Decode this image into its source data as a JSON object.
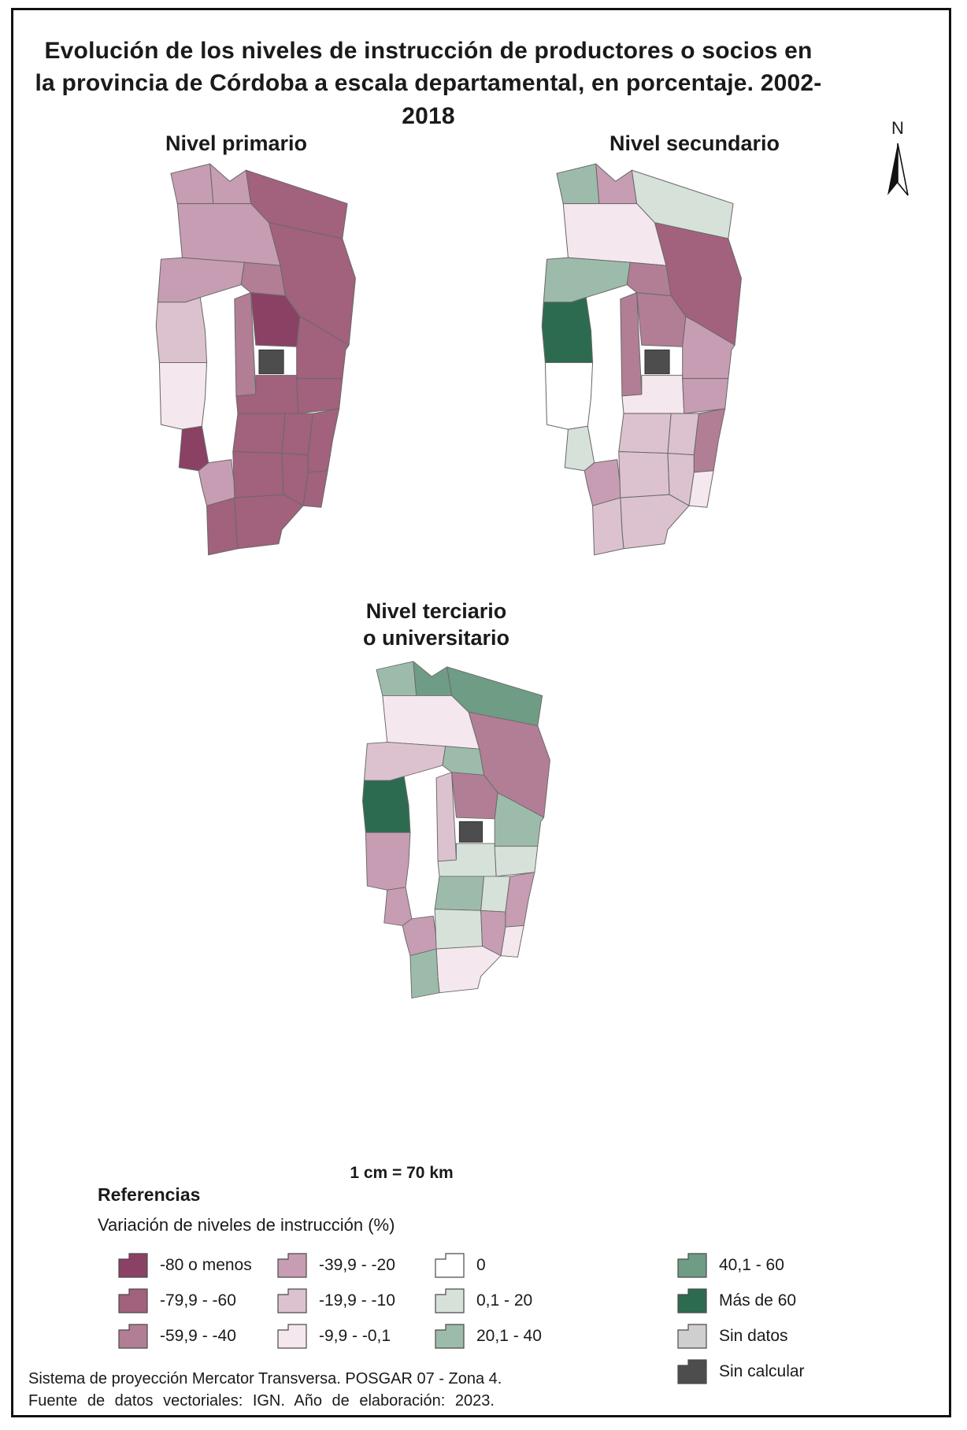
{
  "title": "Evolución de los niveles de instrucción de productores o socios en la provincia de Córdoba a escala departamental, en porcentaje. 2002-2018",
  "north_label": "N",
  "scale_text": "1 cm = 70 km",
  "legend": {
    "heading": "Referencias",
    "subheading": "Variación de niveles de instrucción (%)",
    "classes": [
      {
        "id": "m80",
        "label": "-80 o menos",
        "color": "#8a4164"
      },
      {
        "id": "m60",
        "label": "-79,9 - -60",
        "color": "#a2617c"
      },
      {
        "id": "m40",
        "label": "-59,9 - -40",
        "color": "#b27e95"
      },
      {
        "id": "m20",
        "label": "-39,9 - -20",
        "color": "#c79db3"
      },
      {
        "id": "m10",
        "label": "-19,9 - -10",
        "color": "#dcc2cf"
      },
      {
        "id": "m01",
        "label": "-9,9 - -0,1",
        "color": "#f4e7ed"
      },
      {
        "id": "zero",
        "label": "0",
        "color": "#ffffff"
      },
      {
        "id": "p20",
        "label": "0,1 - 20",
        "color": "#d6e2d9"
      },
      {
        "id": "p40",
        "label": "20,1 - 40",
        "color": "#9dbbaa"
      },
      {
        "id": "p60",
        "label": "40,1 - 60",
        "color": "#6f9c84"
      },
      {
        "id": "p60plus",
        "label": "Más de 60",
        "color": "#2d6b50"
      },
      {
        "id": "sin_datos",
        "label": "Sin datos",
        "color": "#cfcfcf"
      },
      {
        "id": "sin_calcular",
        "label": "Sin calcular",
        "color": "#4d4d4d"
      }
    ],
    "columns": [
      [
        "m80",
        "m60",
        "m40"
      ],
      [
        "m20",
        "m10",
        "m01"
      ],
      [
        "zero",
        "p20",
        "p40"
      ],
      [
        "p60",
        "p60plus",
        "sin_datos",
        "sin_calcular"
      ]
    ]
  },
  "maps": [
    {
      "id": "primario",
      "title": "Nivel primario",
      "classes": {
        "sobremonte": "m20",
        "rio_seco": "m20",
        "ne_upper": "m60",
        "san_justo_n": "m60",
        "tulumba": "m20",
        "cruz_del_eje": "m20",
        "minas": "m10",
        "pocho": "m01",
        "san_alberto": "m80",
        "san_javier": "m20",
        "punilla": "m40",
        "totoral": "m40",
        "colon": "m80",
        "capital": "sin_calcular",
        "rio_primero": "m60",
        "santa_maria": "m60",
        "rio_segundo": "m60",
        "calamuchita": "m60",
        "tercero_arriba": "m60",
        "union": "m60",
        "marcos_juarez": "m60",
        "rio_cuarto": "m60",
        "juarez_celman": "m60",
        "saenz_pena": "m60",
        "general_roca": "m60"
      }
    },
    {
      "id": "secundario",
      "title": "Nivel secundario",
      "classes": {
        "sobremonte": "p40",
        "rio_seco": "m20",
        "ne_upper": "p20",
        "san_justo_n": "m60",
        "tulumba": "m01",
        "cruz_del_eje": "p40",
        "minas": "p60plus",
        "pocho": "zero",
        "san_alberto": "p20",
        "san_javier": "m20",
        "punilla": "m40",
        "totoral": "m40",
        "colon": "m40",
        "capital": "sin_calcular",
        "rio_primero": "m20",
        "santa_maria": "m01",
        "rio_segundo": "m20",
        "calamuchita": "m10",
        "tercero_arriba": "m10",
        "union": "m40",
        "marcos_juarez": "m01",
        "rio_cuarto": "m10",
        "juarez_celman": "m10",
        "saenz_pena": "m10",
        "general_roca": "m10"
      }
    },
    {
      "id": "terciario",
      "title": "Nivel terciario\no universitario",
      "classes": {
        "sobremonte": "p40",
        "rio_seco": "p60",
        "ne_upper": "p60",
        "san_justo_n": "m40",
        "tulumba": "m01",
        "cruz_del_eje": "m10",
        "minas": "p60plus",
        "pocho": "m20",
        "san_alberto": "m20",
        "san_javier": "m20",
        "punilla": "m10",
        "totoral": "p40",
        "colon": "m40",
        "capital": "sin_calcular",
        "rio_primero": "p40",
        "santa_maria": "p20",
        "rio_segundo": "p20",
        "calamuchita": "p40",
        "tercero_arriba": "p20",
        "union": "m20",
        "marcos_juarez": "m01",
        "rio_cuarto": "p20",
        "juarez_celman": "m20",
        "saenz_pena": "m01",
        "general_roca": "p40"
      }
    }
  ],
  "footer": {
    "line1": "Sistema de proyección Mercator Transversa. POSGAR 07 - Zona 4.",
    "line2": "Fuente de datos vectoriales: IGN. Año de elaboración: 2023."
  }
}
